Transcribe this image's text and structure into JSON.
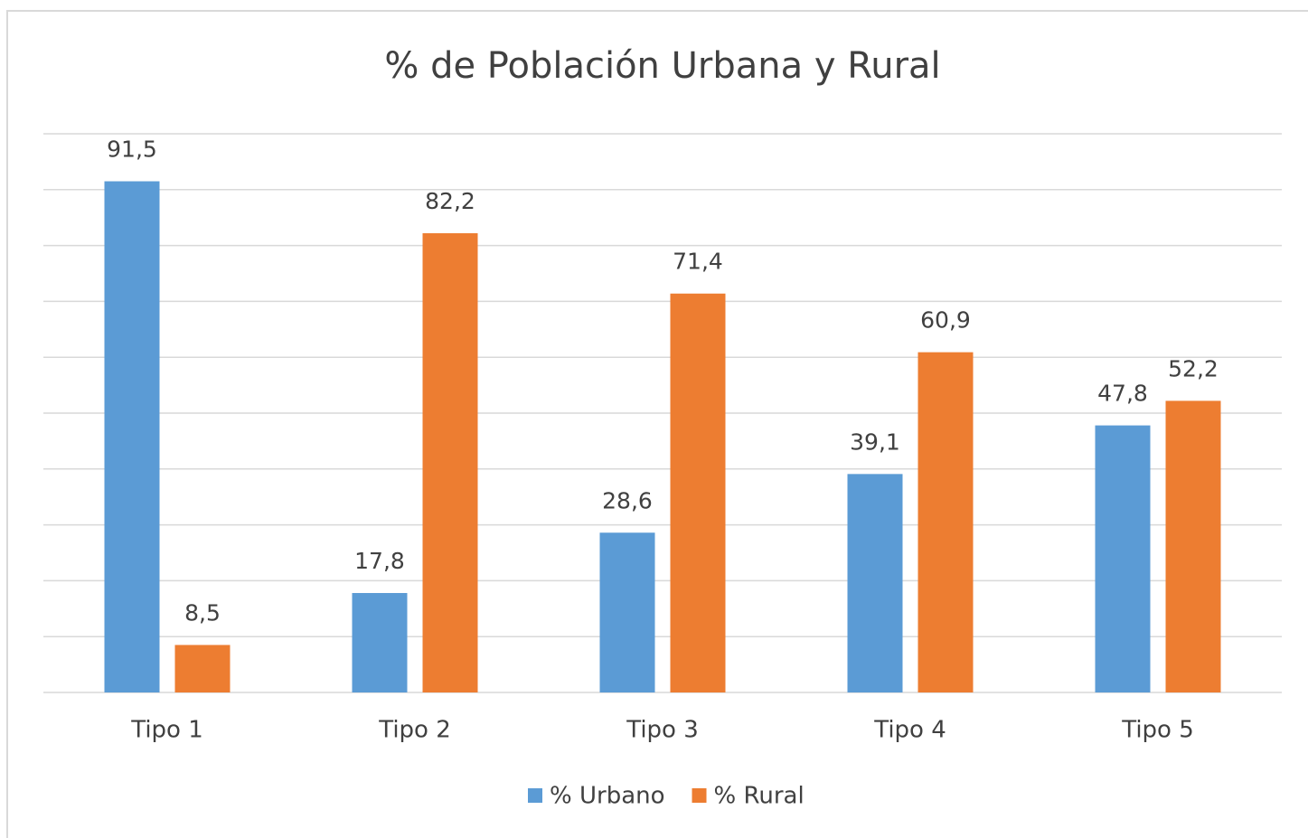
{
  "chart_data": {
    "type": "bar",
    "title": "% de Población Urbana y Rural",
    "categories": [
      "Tipo 1",
      "Tipo 2",
      "Tipo 3",
      "Tipo 4",
      "Tipo 5"
    ],
    "series": [
      {
        "name": "% Urbano",
        "color": "#5b9bd5",
        "values": [
          91.5,
          17.8,
          28.6,
          39.1,
          47.8
        ],
        "value_labels": [
          "91,5",
          "17,8",
          "28,6",
          "39,1",
          "47,8"
        ]
      },
      {
        "name": "% Rural",
        "color": "#ed7d31",
        "values": [
          8.5,
          82.2,
          71.4,
          60.9,
          52.2
        ],
        "value_labels": [
          "8,5",
          "82,2",
          "71,4",
          "60,9",
          "52,2"
        ]
      }
    ],
    "ylim": [
      0,
      100
    ],
    "yticks": [
      0,
      10,
      20,
      30,
      40,
      50,
      60,
      70,
      80,
      90,
      100
    ],
    "grid": true,
    "legend": "bottom"
  }
}
